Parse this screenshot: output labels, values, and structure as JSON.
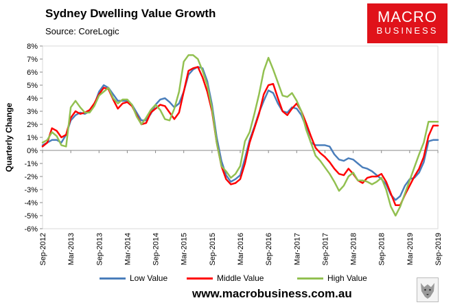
{
  "header": {
    "title": "Sydney Dwelling Value Growth",
    "source": "Source: CoreLogic"
  },
  "logo": {
    "line1": "MACRO",
    "line2": "BUSINESS",
    "color": "#e0121a"
  },
  "footer": {
    "url": "www.macrobusiness.com.au"
  },
  "chart_data": {
    "type": "line",
    "title": "Sydney Dwelling Value Growth",
    "xlabel": "",
    "ylabel": "Quarterly Change",
    "ylim": [
      -6,
      8
    ],
    "yticks": [
      -6,
      -5,
      -4,
      -3,
      -2,
      -1,
      0,
      1,
      2,
      3,
      4,
      5,
      6,
      7,
      8
    ],
    "ytick_labels": [
      "-6%",
      "-5%",
      "-4%",
      "-3%",
      "-2%",
      "-1%",
      "0%",
      "1%",
      "2%",
      "3%",
      "4%",
      "5%",
      "6%",
      "7%",
      "8%"
    ],
    "x_start": "Sep-2012",
    "xticks": [
      {
        "label": "Sep-2012",
        "month": 0
      },
      {
        "label": "Mar-2013",
        "month": 6
      },
      {
        "label": "Sep-2013",
        "month": 12
      },
      {
        "label": "Mar-2014",
        "month": 18
      },
      {
        "label": "Sep-2014",
        "month": 24
      },
      {
        "label": "Mar-2015",
        "month": 30
      },
      {
        "label": "Sep-2015",
        "month": 36
      },
      {
        "label": "Mar-2016",
        "month": 42
      },
      {
        "label": "Sep-2016",
        "month": 48
      },
      {
        "label": "Mar-2017",
        "month": 54
      },
      {
        "label": "Sep-2017",
        "month": 60
      },
      {
        "label": "Mar-2018",
        "month": 66
      },
      {
        "label": "Sep-2018",
        "month": 72
      },
      {
        "label": "Mar-2019",
        "month": 78
      },
      {
        "label": "Sep-2019",
        "month": 84
      }
    ],
    "x_months": [
      0,
      1,
      2,
      3,
      4,
      5,
      6,
      7,
      8,
      9,
      10,
      11,
      12,
      13,
      14,
      15,
      16,
      17,
      18,
      19,
      20,
      21,
      22,
      23,
      24,
      25,
      26,
      27,
      28,
      29,
      30,
      31,
      32,
      33,
      34,
      35,
      36,
      37,
      38,
      39,
      40,
      41,
      42,
      43,
      44,
      45,
      46,
      47,
      48,
      49,
      50,
      51,
      52,
      53,
      54,
      55,
      56,
      57,
      58,
      59,
      60,
      61,
      62,
      63,
      64,
      65,
      66,
      67,
      68,
      69,
      70,
      71,
      72,
      73,
      74,
      75,
      76,
      77,
      78,
      79,
      80,
      81,
      82,
      83,
      84
    ],
    "legend_position": "bottom",
    "series": [
      {
        "name": "Low Value",
        "color": "#4a7ebb",
        "values": [
          0.4,
          0.6,
          0.8,
          0.8,
          0.6,
          1.2,
          2.3,
          2.7,
          2.9,
          2.8,
          3.0,
          3.5,
          4.5,
          5.0,
          4.8,
          4.3,
          3.8,
          3.8,
          3.8,
          3.5,
          2.9,
          2.3,
          2.3,
          2.8,
          3.5,
          3.9,
          4.0,
          3.7,
          3.3,
          3.6,
          4.5,
          5.8,
          6.2,
          6.4,
          6.3,
          5.3,
          3.5,
          1.0,
          -0.8,
          -1.9,
          -2.4,
          -2.2,
          -1.9,
          -0.6,
          0.8,
          1.8,
          2.9,
          3.8,
          4.6,
          4.4,
          3.6,
          3.0,
          2.9,
          3.3,
          3.2,
          2.7,
          1.8,
          0.6,
          0.4,
          0.4,
          0.4,
          0.3,
          -0.3,
          -0.7,
          -0.8,
          -0.6,
          -0.7,
          -1.0,
          -1.3,
          -1.4,
          -1.6,
          -1.9,
          -2.2,
          -2.6,
          -3.4,
          -3.8,
          -3.5,
          -2.7,
          -2.2,
          -2.1,
          -1.7,
          -0.9,
          0.7,
          0.8,
          0.8
        ],
        "values_note": "estimated"
      },
      {
        "name": "Middle Value",
        "color": "#ff0000",
        "values": [
          0.3,
          0.6,
          1.7,
          1.5,
          1.0,
          1.2,
          2.5,
          3.0,
          2.8,
          2.9,
          3.1,
          3.6,
          4.3,
          4.8,
          4.7,
          3.9,
          3.2,
          3.6,
          3.7,
          3.4,
          2.7,
          2.0,
          2.1,
          2.9,
          3.2,
          3.5,
          3.4,
          2.9,
          2.4,
          2.9,
          4.5,
          6.1,
          6.3,
          6.4,
          5.6,
          4.5,
          3.0,
          0.6,
          -1.2,
          -2.2,
          -2.6,
          -2.5,
          -2.2,
          -1.0,
          0.6,
          1.7,
          2.8,
          4.3,
          5.0,
          5.1,
          4.0,
          3.0,
          2.7,
          3.2,
          3.6,
          3.0,
          2.1,
          1.1,
          0.2,
          -0.2,
          -0.5,
          -0.9,
          -1.4,
          -1.8,
          -1.9,
          -1.4,
          -1.8,
          -2.3,
          -2.5,
          -2.1,
          -2.0,
          -2.0,
          -1.8,
          -2.4,
          -3.3,
          -4.2,
          -4.2,
          -3.4,
          -2.7,
          -2.0,
          -1.4,
          -0.5,
          1.1,
          1.9,
          1.9
        ],
        "values_note": "estimated"
      },
      {
        "name": "High Value",
        "color": "#92c050",
        "values": [
          0.6,
          0.8,
          1.4,
          1.1,
          0.4,
          0.3,
          3.3,
          3.8,
          3.3,
          2.9,
          2.9,
          3.4,
          4.2,
          4.5,
          4.8,
          4.0,
          3.6,
          3.9,
          3.9,
          3.5,
          2.6,
          2.0,
          2.5,
          3.1,
          3.5,
          3.1,
          2.4,
          2.3,
          3.2,
          4.5,
          6.8,
          7.3,
          7.3,
          7.0,
          6.1,
          5.0,
          3.2,
          0.6,
          -1.2,
          -1.6,
          -2.1,
          -1.8,
          -1.2,
          0.7,
          1.4,
          2.8,
          4.3,
          6.1,
          7.1,
          6.2,
          5.2,
          4.2,
          4.1,
          4.4,
          3.8,
          3.0,
          1.6,
          0.6,
          -0.4,
          -0.8,
          -1.3,
          -1.8,
          -2.4,
          -3.1,
          -2.7,
          -2.0,
          -1.7,
          -2.3,
          -2.3,
          -2.4,
          -2.6,
          -2.4,
          -2.1,
          -3.0,
          -4.3,
          -5.0,
          -4.3,
          -3.3,
          -2.3,
          -1.3,
          -0.3,
          0.6,
          2.2,
          2.2,
          2.2
        ],
        "values_note": "estimated"
      }
    ]
  }
}
